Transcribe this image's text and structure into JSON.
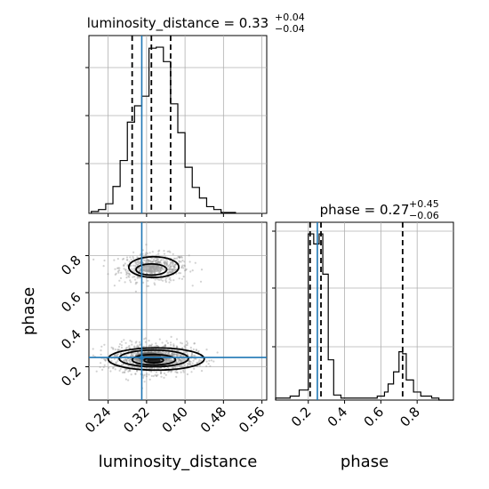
{
  "chart_data": {
    "type": "corner",
    "colors": {
      "truth": "#1f77b4",
      "hist": "#000000",
      "grid": "#b0b0b0",
      "samples": "#9a9a9a",
      "fill": "#000000"
    },
    "parameters": [
      "luminosity_distance",
      "phase"
    ],
    "truths": {
      "luminosity_distance": 0.31,
      "phase": 0.25
    },
    "titles": [
      {
        "param": "luminosity_distance",
        "label": "luminosity_distance = 0.33",
        "plus": "+0.04",
        "minus": "−0.04"
      },
      {
        "param": "phase",
        "label": "phase = 0.27",
        "plus": "+0.45",
        "minus": "−0.06"
      }
    ],
    "axis_labels": {
      "x": [
        "luminosity_distance",
        "phase"
      ],
      "y": "phase"
    },
    "luminosity_distance_hist": {
      "xlim": [
        0.2,
        0.57
      ],
      "quantiles": [
        0.29,
        0.33,
        0.37
      ],
      "edges": [
        0.205,
        0.22,
        0.235,
        0.25,
        0.265,
        0.28,
        0.295,
        0.31,
        0.325,
        0.34,
        0.355,
        0.37,
        0.385,
        0.4,
        0.415,
        0.43,
        0.445,
        0.46,
        0.475,
        0.49,
        0.505
      ],
      "counts": [
        2,
        4,
        10,
        28,
        55,
        95,
        112,
        122,
        172,
        173,
        158,
        114,
        84,
        48,
        27,
        16,
        7,
        4,
        1,
        1
      ]
    },
    "phase_hist": {
      "xlim": [
        0.02,
        1.0
      ],
      "quantiles": [
        0.21,
        0.27,
        0.72
      ],
      "edges": [
        0.02,
        0.1,
        0.15,
        0.2,
        0.23,
        0.26,
        0.28,
        0.31,
        0.34,
        0.38,
        0.42,
        0.58,
        0.62,
        0.64,
        0.67,
        0.7,
        0.72,
        0.74,
        0.78,
        0.82,
        0.88,
        0.92,
        1.0
      ],
      "counts": [
        2,
        4,
        10,
        165,
        155,
        165,
        125,
        40,
        5,
        2,
        2,
        4,
        8,
        16,
        28,
        48,
        46,
        20,
        8,
        4,
        2,
        0
      ]
    },
    "joint": {
      "xlim": [
        0.2,
        0.57
      ],
      "ylim": [
        0.02,
        0.98
      ],
      "modes": [
        {
          "x": 0.335,
          "y": 0.735,
          "sx": 0.036,
          "sy": 0.038,
          "n": 520
        },
        {
          "x": 0.335,
          "y": 0.245,
          "sx": 0.042,
          "sy": 0.04,
          "n": 1200
        }
      ],
      "density_patches": [
        {
          "x": 0.335,
          "y": 0.235,
          "w": 0.028,
          "h": 0.028,
          "shade": "#000000"
        },
        {
          "x": 0.325,
          "y": 0.255,
          "w": 0.05,
          "h": 0.045,
          "shade": "#4b4b4b"
        },
        {
          "x": 0.33,
          "y": 0.25,
          "w": 0.07,
          "h": 0.06,
          "shade": "#808080"
        },
        {
          "x": 0.33,
          "y": 0.73,
          "w": 0.04,
          "h": 0.045,
          "shade": "#a0a0a0"
        }
      ],
      "contours": [
        {
          "x": 0.335,
          "y": 0.738,
          "rx": 0.052,
          "ry": 0.056
        },
        {
          "x": 0.33,
          "y": 0.725,
          "rx": 0.032,
          "ry": 0.03
        },
        {
          "x": 0.34,
          "y": 0.242,
          "rx": 0.1,
          "ry": 0.06
        },
        {
          "x": 0.335,
          "y": 0.245,
          "rx": 0.072,
          "ry": 0.045
        },
        {
          "x": 0.335,
          "y": 0.238,
          "rx": 0.045,
          "ry": 0.028
        },
        {
          "x": 0.335,
          "y": 0.235,
          "rx": 0.02,
          "ry": 0.014
        }
      ]
    },
    "x_ticks_ld": [
      "0.24",
      "0.32",
      "0.40",
      "0.48",
      "0.56"
    ],
    "x_ticks_ld_values": [
      0.24,
      0.32,
      0.4,
      0.48,
      0.56
    ],
    "y_ticks_phase": [
      "0.2",
      "0.4",
      "0.6",
      "0.8"
    ],
    "y_ticks_phase_values": [
      0.2,
      0.4,
      0.6,
      0.8
    ],
    "x_ticks_phase": [
      "0.2",
      "0.4",
      "0.6",
      "0.8"
    ],
    "x_ticks_phase_values": [
      0.2,
      0.4,
      0.6,
      0.8
    ],
    "grid": true
  }
}
